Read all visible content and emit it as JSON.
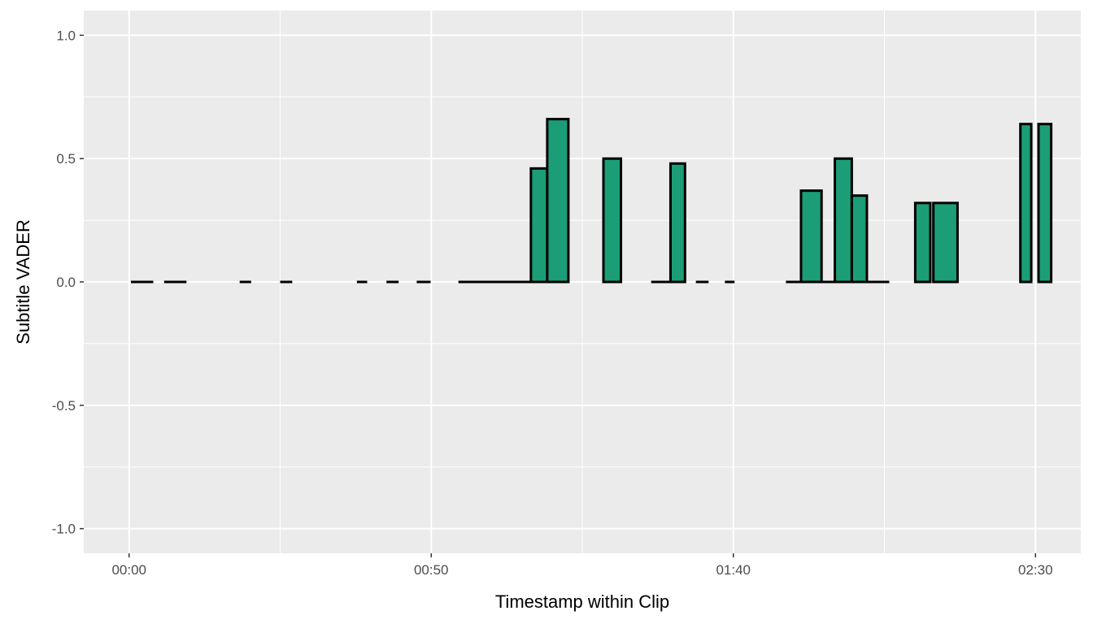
{
  "chart_data": {
    "type": "bar",
    "title": "",
    "xlabel": "Timestamp within Clip",
    "ylabel": "Subtitle VADER",
    "xlim": [
      -7.5,
      157.5
    ],
    "ylim": [
      -1.1,
      1.1
    ],
    "x_ticks": [
      {
        "value": 0,
        "label": "00:00"
      },
      {
        "value": 50,
        "label": "00:50"
      },
      {
        "value": 100,
        "label": "01:40"
      },
      {
        "value": 150,
        "label": "02:30"
      }
    ],
    "y_ticks": [
      {
        "value": 1.0,
        "label": "1.0"
      },
      {
        "value": 0.5,
        "label": "0.5"
      },
      {
        "value": 0.0,
        "label": "0.0"
      },
      {
        "value": -0.5,
        "label": "-0.5"
      },
      {
        "value": -1.0,
        "label": "-1.0"
      }
    ],
    "grid": true,
    "bar_fill": "#1b9e77",
    "bar_outline": "#000000",
    "panel_background": "#ebebeb",
    "grid_color": "#ffffff",
    "bars": [
      {
        "start": 0.3,
        "end": 4.0,
        "value": 0.0
      },
      {
        "start": 5.8,
        "end": 9.5,
        "value": 0.0
      },
      {
        "start": 18.3,
        "end": 20.2,
        "value": 0.0
      },
      {
        "start": 25.0,
        "end": 27.0,
        "value": 0.0
      },
      {
        "start": 37.7,
        "end": 39.4,
        "value": 0.0
      },
      {
        "start": 42.6,
        "end": 44.6,
        "value": 0.0
      },
      {
        "start": 47.6,
        "end": 49.9,
        "value": 0.0
      },
      {
        "start": 54.5,
        "end": 66.5,
        "value": 0.0
      },
      {
        "start": 66.5,
        "end": 69.2,
        "value": 0.46
      },
      {
        "start": 69.2,
        "end": 72.7,
        "value": 0.66
      },
      {
        "start": 78.5,
        "end": 81.4,
        "value": 0.5
      },
      {
        "start": 86.4,
        "end": 89.6,
        "value": 0.0
      },
      {
        "start": 89.6,
        "end": 92.0,
        "value": 0.48
      },
      {
        "start": 93.8,
        "end": 95.9,
        "value": 0.0
      },
      {
        "start": 98.6,
        "end": 100.2,
        "value": 0.0
      },
      {
        "start": 108.7,
        "end": 111.2,
        "value": 0.0
      },
      {
        "start": 111.2,
        "end": 114.6,
        "value": 0.37
      },
      {
        "start": 114.6,
        "end": 116.8,
        "value": 0.0
      },
      {
        "start": 116.8,
        "end": 119.6,
        "value": 0.5
      },
      {
        "start": 119.6,
        "end": 122.1,
        "value": 0.35
      },
      {
        "start": 122.1,
        "end": 125.8,
        "value": 0.0
      },
      {
        "start": 130.1,
        "end": 132.6,
        "value": 0.32
      },
      {
        "start": 133.1,
        "end": 137.1,
        "value": 0.32
      },
      {
        "start": 147.5,
        "end": 149.3,
        "value": 0.64
      },
      {
        "start": 150.5,
        "end": 152.6,
        "value": 0.64
      }
    ]
  }
}
